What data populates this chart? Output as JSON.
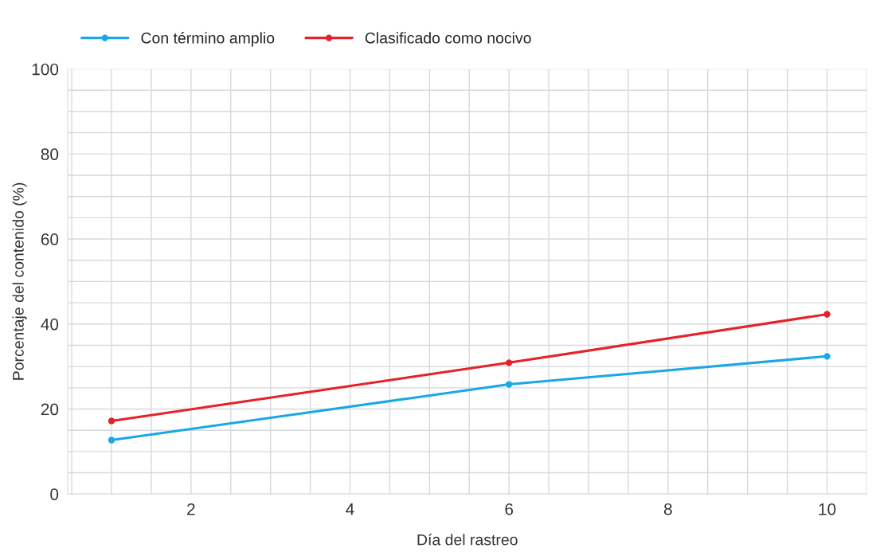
{
  "chart_data": {
    "type": "line",
    "xlabel": "Día del rastreo",
    "ylabel": "Porcentaje del contenido (%)",
    "x": [
      1,
      6,
      10
    ],
    "series": [
      {
        "name": "Con término amplio",
        "color": "#1aa7e6",
        "values": [
          12.7,
          25.8,
          32.4
        ]
      },
      {
        "name": "Clasificado como nocivo",
        "color": "#e52229",
        "values": [
          17.2,
          30.9,
          42.3
        ]
      }
    ],
    "xlim": [
      0.45,
      10.5
    ],
    "xticks": [
      {
        "value": 0.5,
        "label": null
      },
      {
        "value": 1,
        "label": null
      },
      {
        "value": 1.5,
        "label": null
      },
      2,
      {
        "value": 2.5,
        "label": null
      },
      {
        "value": 3,
        "label": null
      },
      {
        "value": 3.5,
        "label": null
      },
      4,
      {
        "value": 4.5,
        "label": null
      },
      {
        "value": 5,
        "label": null
      },
      {
        "value": 5.5,
        "label": null
      },
      6,
      {
        "value": 6.5,
        "label": null
      },
      {
        "value": 7,
        "label": null
      },
      {
        "value": 7.5,
        "label": null
      },
      8,
      {
        "value": 8.5,
        "label": null
      },
      {
        "value": 9,
        "label": null
      },
      {
        "value": 9.5,
        "label": null
      },
      10,
      {
        "value": 10.5,
        "label": null
      }
    ],
    "ylim": [
      0,
      100
    ],
    "yticks": [
      0,
      {
        "value": 5,
        "label": null
      },
      {
        "value": 10,
        "label": null
      },
      {
        "value": 15,
        "label": null
      },
      20,
      {
        "value": 25,
        "label": null
      },
      {
        "value": 30,
        "label": null
      },
      {
        "value": 35,
        "label": null
      },
      40,
      {
        "value": 45,
        "label": null
      },
      {
        "value": 50,
        "label": null
      },
      {
        "value": 55,
        "label": null
      },
      60,
      {
        "value": 65,
        "label": null
      },
      {
        "value": 70,
        "label": null
      },
      {
        "value": 75,
        "label": null
      },
      80,
      {
        "value": 85,
        "label": null
      },
      {
        "value": 90,
        "label": null
      },
      {
        "value": 95,
        "label": null
      },
      100
    ],
    "grid": true,
    "legend": "top left",
    "marker": "circle",
    "line_style": "solid"
  }
}
